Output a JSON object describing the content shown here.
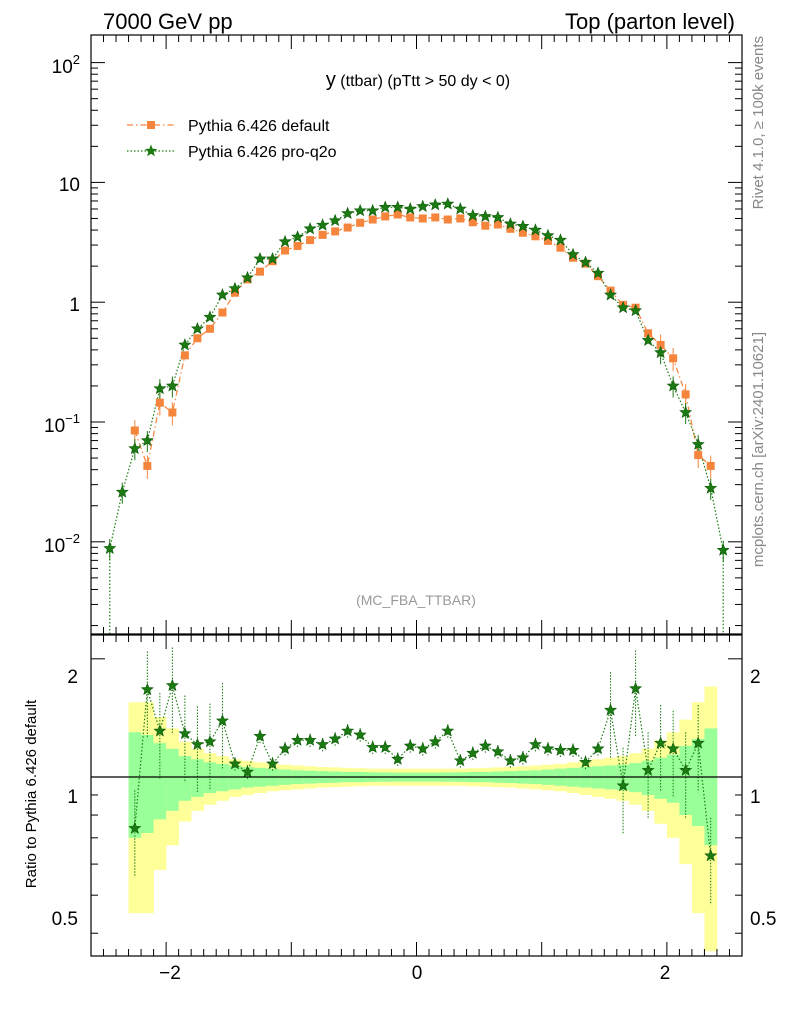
{
  "header": {
    "left": "7000 GeV pp",
    "right": "Top (parton level)"
  },
  "side": {
    "rivet": "Rivet 4.1.0, ≥ 100k events",
    "mcplots": "mcplots.cern.ch [arXiv:2401.10621]"
  },
  "main_plot": {
    "title_main": "y",
    "title_sub": " (ttbar) (pTtt > 50 dy < 0)",
    "watermark": "(MC_FBA_TTBAR)",
    "y_ticks": [
      {
        "base": "10",
        "exp": "2",
        "value": 100
      },
      {
        "base": "10",
        "exp": "",
        "value": 10
      },
      {
        "base": "1",
        "exp": "",
        "value": 1
      },
      {
        "base": "10",
        "exp": "−1",
        "value": 0.1
      },
      {
        "base": "10",
        "exp": "−2",
        "value": 0.01
      }
    ],
    "colors": {
      "default": "#f5853c",
      "proq2o": "#1b7a12"
    }
  },
  "ratio_plot": {
    "ylabel": "Ratio to Pythia 6.426 default",
    "y_ticks": [
      "2",
      "1",
      "0.5"
    ],
    "x_ticks": [
      "−2",
      "0",
      "2"
    ]
  },
  "chart_data": {
    "type": "scatter",
    "x_range": [
      -2.6,
      2.6
    ],
    "y_range_main": [
      0.0017,
      170
    ],
    "y_scale_main": "log",
    "y_range_ratio": [
      0.35,
      2.3
    ],
    "y_scale_ratio": "log",
    "legend": [
      "Pythia 6.426 default",
      "Pythia 6.426 pro-q2o"
    ],
    "legend_position": "top-left",
    "series": [
      {
        "name": "Pythia 6.426 default",
        "marker": "square",
        "line": "dash-dot",
        "x": [
          -2.25,
          -2.15,
          -2.05,
          -1.95,
          -1.85,
          -1.75,
          -1.65,
          -1.55,
          -1.45,
          -1.35,
          -1.25,
          -1.15,
          -1.05,
          -0.95,
          -0.85,
          -0.75,
          -0.65,
          -0.55,
          -0.45,
          -0.35,
          -0.25,
          -0.15,
          -0.05,
          0.05,
          0.15,
          0.25,
          0.35,
          0.45,
          0.55,
          0.65,
          0.75,
          0.85,
          0.95,
          1.05,
          1.15,
          1.25,
          1.35,
          1.45,
          1.55,
          1.65,
          1.75,
          1.85,
          1.95,
          2.05,
          2.15,
          2.25,
          2.35
        ],
        "y": [
          0.085,
          0.043,
          0.145,
          0.12,
          0.36,
          0.5,
          0.6,
          0.82,
          1.2,
          1.55,
          1.8,
          2.2,
          2.7,
          2.95,
          3.3,
          3.65,
          3.9,
          4.2,
          4.6,
          4.9,
          5.2,
          5.4,
          5.1,
          5.0,
          5.1,
          4.9,
          5.0,
          4.65,
          4.35,
          4.45,
          4.1,
          3.8,
          3.55,
          3.25,
          2.85,
          2.35,
          2.1,
          1.65,
          1.25,
          0.95,
          0.9,
          0.55,
          0.44,
          0.34,
          0.17,
          0.053,
          0.043
        ]
      },
      {
        "name": "Pythia 6.426 pro-q2o",
        "marker": "star",
        "line": "dotted",
        "x": [
          -2.45,
          -2.35,
          -2.25,
          -2.15,
          -2.05,
          -1.95,
          -1.85,
          -1.75,
          -1.65,
          -1.55,
          -1.45,
          -1.35,
          -1.25,
          -1.15,
          -1.05,
          -0.95,
          -0.85,
          -0.75,
          -0.65,
          -0.55,
          -0.45,
          -0.35,
          -0.25,
          -0.15,
          -0.05,
          0.05,
          0.15,
          0.25,
          0.35,
          0.45,
          0.55,
          0.65,
          0.75,
          0.85,
          0.95,
          1.05,
          1.15,
          1.25,
          1.35,
          1.45,
          1.55,
          1.65,
          1.75,
          1.85,
          1.95,
          2.05,
          2.15,
          2.25,
          2.35,
          2.45
        ],
        "y": [
          0.0088,
          0.026,
          0.06,
          0.07,
          0.19,
          0.2,
          0.44,
          0.6,
          0.75,
          1.15,
          1.3,
          1.6,
          2.3,
          2.3,
          3.2,
          3.5,
          4.1,
          4.4,
          4.8,
          5.5,
          5.8,
          5.8,
          6.2,
          6.2,
          6.0,
          6.3,
          6.5,
          6.6,
          6.0,
          5.3,
          5.2,
          5.1,
          4.5,
          4.3,
          4.0,
          3.6,
          3.3,
          2.5,
          2.15,
          1.75,
          1.15,
          0.9,
          0.85,
          0.48,
          0.38,
          0.2,
          0.12,
          0.065,
          0.028,
          0.0085
        ]
      }
    ],
    "ratio": {
      "name": "Pythia 6.426 pro-q2o / Pythia 6.426 default",
      "x": [
        -2.25,
        -2.15,
        -2.05,
        -1.95,
        -1.85,
        -1.75,
        -1.65,
        -1.55,
        -1.45,
        -1.35,
        -1.25,
        -1.15,
        -1.05,
        -0.95,
        -0.85,
        -0.75,
        -0.65,
        -0.55,
        -0.45,
        -0.35,
        -0.25,
        -0.15,
        -0.05,
        0.05,
        0.15,
        0.25,
        0.35,
        0.45,
        0.55,
        0.65,
        0.75,
        0.85,
        0.95,
        1.05,
        1.15,
        1.25,
        1.35,
        1.45,
        1.55,
        1.65,
        1.75,
        1.85,
        1.95,
        2.05,
        2.15,
        2.25,
        2.35
      ],
      "y": [
        0.74,
        1.67,
        1.31,
        1.71,
        1.29,
        1.21,
        1.23,
        1.39,
        1.08,
        1.03,
        1.27,
        1.08,
        1.18,
        1.24,
        1.24,
        1.21,
        1.25,
        1.31,
        1.28,
        1.19,
        1.19,
        1.11,
        1.2,
        1.18,
        1.23,
        1.31,
        1.1,
        1.15,
        1.2,
        1.16,
        1.1,
        1.12,
        1.21,
        1.18,
        1.17,
        1.17,
        1.09,
        1.18,
        1.48,
        0.95,
        1.68,
        1.04,
        1.22,
        1.18,
        1.04,
        1.22,
        0.63
      ],
      "band_green": [
        0.3,
        0.28,
        0.22,
        0.18,
        0.13,
        0.11,
        0.09,
        0.08,
        0.07,
        0.06,
        0.055,
        0.05,
        0.045,
        0.04,
        0.038,
        0.035,
        0.033,
        0.03,
        0.03,
        0.028,
        0.027,
        0.026,
        0.026,
        0.026,
        0.026,
        0.027,
        0.028,
        0.03,
        0.03,
        0.033,
        0.035,
        0.038,
        0.04,
        0.045,
        0.05,
        0.055,
        0.06,
        0.065,
        0.07,
        0.075,
        0.085,
        0.1,
        0.12,
        0.14,
        0.2,
        0.25,
        0.33
      ],
      "band_yellow": [
        0.55,
        0.55,
        0.42,
        0.33,
        0.23,
        0.18,
        0.15,
        0.13,
        0.11,
        0.1,
        0.09,
        0.08,
        0.075,
        0.07,
        0.065,
        0.06,
        0.058,
        0.055,
        0.053,
        0.05,
        0.05,
        0.05,
        0.05,
        0.05,
        0.05,
        0.05,
        0.05,
        0.053,
        0.055,
        0.058,
        0.06,
        0.065,
        0.07,
        0.075,
        0.08,
        0.09,
        0.1,
        0.11,
        0.12,
        0.13,
        0.15,
        0.18,
        0.24,
        0.3,
        0.4,
        0.55,
        0.7
      ]
    }
  }
}
